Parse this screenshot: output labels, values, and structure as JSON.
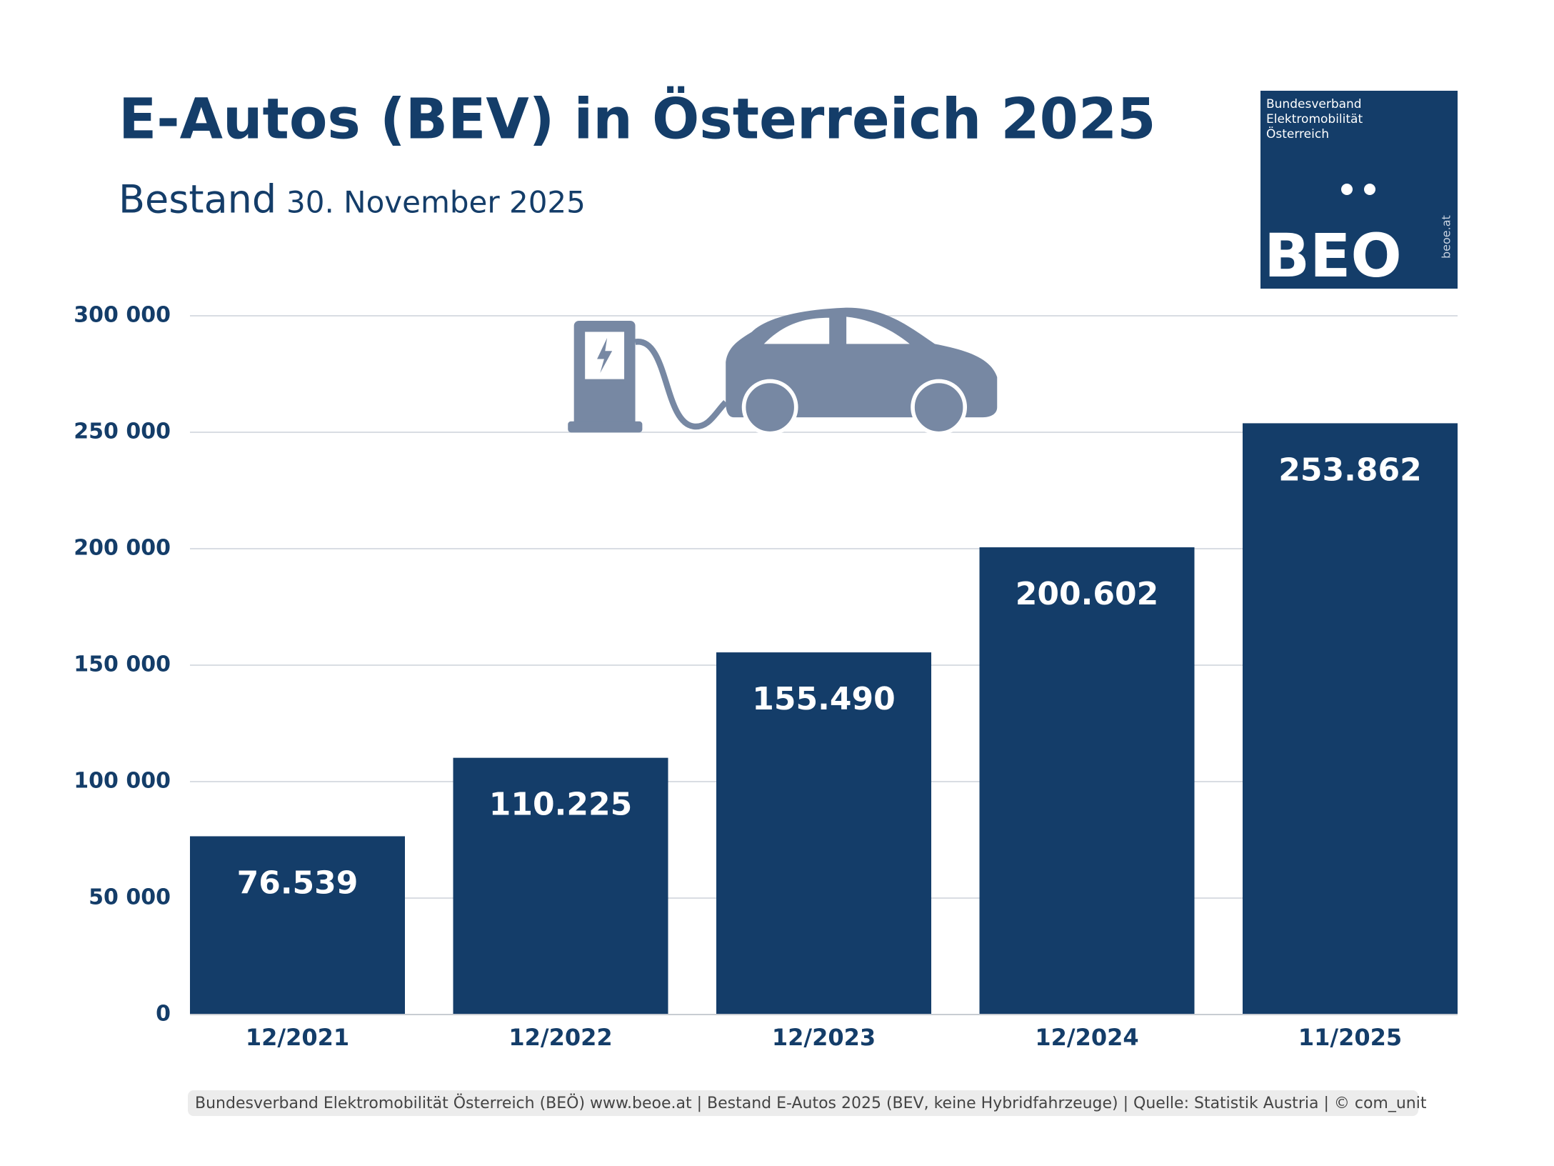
{
  "chart_data": {
    "type": "bar",
    "title": "E-Autos (BEV) in Österreich 2025",
    "subtitle": "Bestand",
    "date": "30. November 2025",
    "categories": [
      "12/2021",
      "12/2022",
      "12/2023",
      "12/2024",
      "11/2025"
    ],
    "values": [
      76539,
      110225,
      155490,
      200602,
      253862
    ],
    "value_labels": [
      "76.539",
      "110.225",
      "155.490",
      "200.602",
      "253.862"
    ],
    "color": "#143d69",
    "ylim": [
      0,
      300000
    ],
    "yticks": [
      0,
      {
        "value": 50000,
        "label": "50 000"
      },
      {
        "value": 100000,
        "label": "100 000"
      },
      {
        "value": 150000,
        "label": "150 000"
      },
      {
        "value": 200000,
        "label": "200 000"
      },
      {
        "value": 250000,
        "label": "250 000"
      },
      {
        "value": 300000,
        "label": "300 000"
      }
    ],
    "grid": true,
    "source": "Bundesverband Elektromobilität Österreich (BEÖ) www.beoe.at | Bestand E-Autos 2025 (BEV, keine Hybridfahrzeuge) | Quelle: Statistik Austria | © com_unit"
  },
  "logo": {
    "lines": [
      "Bundesverband",
      "Elektromobilität",
      "Österreich"
    ],
    "brand": "BEO",
    "url": "beoe.at"
  }
}
